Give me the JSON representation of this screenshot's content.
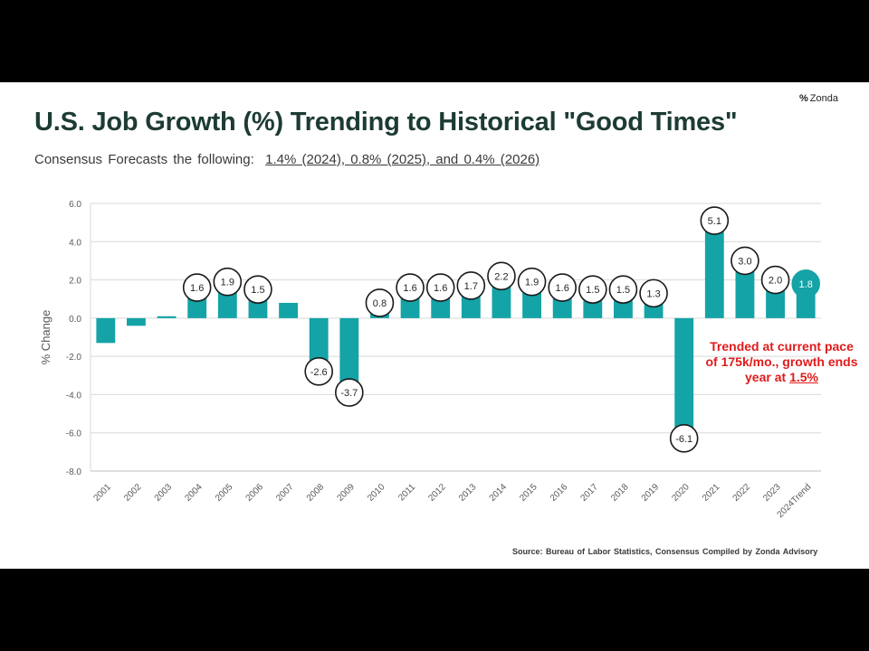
{
  "logo": {
    "mark": "%",
    "text": "Zonda"
  },
  "title": "U.S. Job Growth (%) Trending to Historical \"Good Times\"",
  "subtitle": {
    "lead": "Consensus Forecasts the following:",
    "forecasts": "1.4% (2024),  0.8% (2025),  and 0.4% (2026)"
  },
  "annotation": {
    "text": "Trended at current pace of 175k/mo., growth ends year at",
    "highlight": "1.5%"
  },
  "source": "Source:  Bureau of Labor Statistics,  Consensus Compiled by Zonda Advisory",
  "colors": {
    "bar": "#14a3a6",
    "trend_label_fill": "#14a3a6",
    "grid": "#d9d9d9",
    "title": "#1d3b35",
    "annotation": "#e01b1b"
  },
  "chart_data": {
    "type": "bar",
    "title": "U.S. Job Growth (%)",
    "xlabel": "",
    "ylabel": "% Change",
    "ylim": [
      -8,
      6
    ],
    "yticks": [
      6.0,
      4.0,
      2.0,
      0.0,
      -2.0,
      -4.0,
      -6.0,
      -8.0
    ],
    "grid": true,
    "categories": [
      "2001",
      "2002",
      "2003",
      "2004",
      "2005",
      "2006",
      "2007",
      "2008",
      "2009",
      "2010",
      "2011",
      "2012",
      "2013",
      "2014",
      "2015",
      "2016",
      "2017",
      "2018",
      "2019",
      "2020",
      "2021",
      "2022",
      "2023",
      "2024Trend"
    ],
    "values": [
      -1.3,
      -0.4,
      0.1,
      1.6,
      1.9,
      1.5,
      0.8,
      -2.6,
      -3.7,
      0.8,
      1.6,
      1.6,
      1.7,
      2.2,
      1.9,
      1.6,
      1.5,
      1.5,
      1.3,
      -6.1,
      5.1,
      3.0,
      2.0,
      1.8
    ],
    "data_labels": [
      "",
      "",
      "",
      "1.6",
      "1.9",
      "1.5",
      "",
      "-2.6",
      "-3.7",
      "0.8",
      "1.6",
      "1.6",
      "1.7",
      "2.2",
      "1.9",
      "1.6",
      "1.5",
      "1.5",
      "1.3",
      "-6.1",
      "5.1",
      "3.0",
      "2.0",
      "1.8"
    ]
  }
}
